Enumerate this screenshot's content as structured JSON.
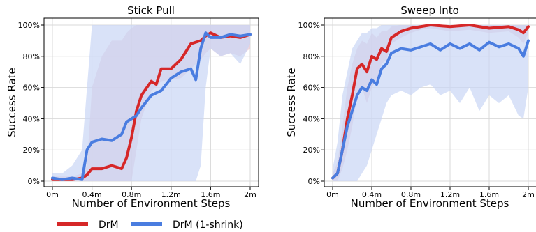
{
  "colors": {
    "drm": "#d62728",
    "shrink": "#4a7de0",
    "drm_band": "#e8c6d2",
    "shrink_band": "#c9d6f5",
    "grid": "#d9d9d9"
  },
  "legend": {
    "items": [
      {
        "label": "DrM",
        "color": "#d62728"
      },
      {
        "label": "DrM (1-shrink)",
        "color": "#4a7de0"
      }
    ]
  },
  "chart_data": [
    {
      "type": "line",
      "title": "Stick Pull",
      "xlabel": "Number of Environment Steps",
      "ylabel": "Success Rate",
      "xlim": [
        0,
        2.0
      ],
      "ylim": [
        0,
        100
      ],
      "xticks": [
        0,
        0.4,
        0.8,
        1.2,
        1.6,
        2.0
      ],
      "xtick_labels": [
        "0m",
        "0.4m",
        "0.8m",
        "1.2m",
        "1.6m",
        "2m"
      ],
      "yticks": [
        0,
        20,
        40,
        60,
        80,
        100
      ],
      "ytick_labels": [
        "0%",
        "20%",
        "40%",
        "60%",
        "80%",
        "100%"
      ],
      "grid": true,
      "series": [
        {
          "name": "DrM",
          "x": [
            0,
            0.1,
            0.2,
            0.3,
            0.35,
            0.4,
            0.5,
            0.6,
            0.7,
            0.75,
            0.8,
            0.85,
            0.9,
            1.0,
            1.05,
            1.1,
            1.2,
            1.3,
            1.4,
            1.5,
            1.55,
            1.6,
            1.7,
            1.8,
            1.9,
            2.0
          ],
          "values": [
            1,
            1,
            1,
            2,
            4,
            8,
            8,
            10,
            8,
            15,
            28,
            45,
            55,
            64,
            62,
            72,
            72,
            78,
            88,
            90,
            93,
            95,
            92,
            93,
            92,
            94
          ],
          "lower": [
            0,
            0,
            0,
            0,
            0,
            0,
            0,
            0,
            0,
            0,
            0,
            20,
            40,
            58,
            60,
            64,
            65,
            66,
            72,
            78,
            82,
            85,
            80,
            82,
            80,
            85
          ],
          "upper": [
            3,
            3,
            3,
            5,
            10,
            60,
            80,
            90,
            90,
            95,
            98,
            100,
            100,
            100,
            100,
            100,
            100,
            100,
            100,
            100,
            100,
            100,
            100,
            100,
            100,
            100
          ]
        },
        {
          "name": "DrM (1-shrink)",
          "x": [
            0,
            0.1,
            0.2,
            0.3,
            0.35,
            0.4,
            0.5,
            0.6,
            0.7,
            0.75,
            0.8,
            0.85,
            0.9,
            1.0,
            1.1,
            1.2,
            1.3,
            1.4,
            1.45,
            1.5,
            1.55,
            1.6,
            1.7,
            1.8,
            1.9,
            2.0
          ],
          "values": [
            2,
            1,
            2,
            1,
            20,
            25,
            27,
            26,
            30,
            38,
            40,
            42,
            47,
            55,
            58,
            66,
            70,
            72,
            65,
            85,
            95,
            92,
            92,
            94,
            93,
            94
          ],
          "lower": [
            0,
            0,
            0,
            0,
            0,
            0,
            0,
            0,
            0,
            0,
            0,
            0,
            0,
            0,
            0,
            0,
            0,
            0,
            0,
            10,
            60,
            85,
            80,
            82,
            75,
            88
          ],
          "upper": [
            5,
            5,
            10,
            20,
            60,
            100,
            100,
            100,
            100,
            100,
            100,
            100,
            100,
            100,
            100,
            100,
            100,
            100,
            100,
            100,
            100,
            100,
            100,
            100,
            100,
            100
          ]
        }
      ]
    },
    {
      "type": "line",
      "title": "Sweep Into",
      "xlabel": "Number of Environment Steps",
      "ylabel": "Success Rate",
      "xlim": [
        0,
        2.0
      ],
      "ylim": [
        0,
        100
      ],
      "xticks": [
        0,
        0.4,
        0.8,
        1.2,
        1.6,
        2.0
      ],
      "xtick_labels": [
        "0m",
        "0.4m",
        "0.8m",
        "1.2m",
        "1.6m",
        "2m"
      ],
      "yticks": [
        0,
        20,
        40,
        60,
        80,
        100
      ],
      "ytick_labels": [
        "0%",
        "20%",
        "40%",
        "60%",
        "80%",
        "100%"
      ],
      "grid": true,
      "series": [
        {
          "name": "DrM",
          "x": [
            0,
            0.05,
            0.1,
            0.15,
            0.2,
            0.25,
            0.3,
            0.35,
            0.4,
            0.45,
            0.5,
            0.55,
            0.6,
            0.7,
            0.8,
            0.9,
            1.0,
            1.2,
            1.4,
            1.6,
            1.8,
            1.9,
            1.95,
            2.0
          ],
          "values": [
            2,
            5,
            20,
            40,
            55,
            72,
            75,
            70,
            80,
            78,
            85,
            83,
            92,
            96,
            98,
            99,
            100,
            99,
            100,
            98,
            99,
            97,
            95,
            99
          ],
          "lower": [
            0,
            0,
            8,
            20,
            35,
            55,
            60,
            50,
            60,
            65,
            75,
            78,
            88,
            92,
            95,
            97,
            98,
            96,
            97,
            95,
            96,
            92,
            88,
            95
          ],
          "upper": [
            5,
            12,
            35,
            60,
            75,
            85,
            90,
            88,
            95,
            92,
            96,
            96,
            99,
            100,
            100,
            100,
            100,
            100,
            100,
            100,
            100,
            100,
            100,
            100
          ]
        },
        {
          "name": "DrM (1-shrink)",
          "x": [
            0,
            0.05,
            0.1,
            0.15,
            0.2,
            0.25,
            0.3,
            0.35,
            0.4,
            0.45,
            0.5,
            0.55,
            0.6,
            0.7,
            0.8,
            0.9,
            1.0,
            1.1,
            1.2,
            1.3,
            1.4,
            1.5,
            1.6,
            1.7,
            1.8,
            1.9,
            1.95,
            2.0
          ],
          "values": [
            2,
            5,
            20,
            35,
            45,
            55,
            60,
            58,
            65,
            62,
            72,
            75,
            82,
            85,
            84,
            86,
            88,
            84,
            88,
            85,
            88,
            84,
            89,
            86,
            88,
            85,
            80,
            90
          ],
          "lower": [
            0,
            0,
            0,
            0,
            0,
            0,
            5,
            10,
            20,
            30,
            40,
            50,
            55,
            58,
            55,
            60,
            62,
            55,
            58,
            50,
            60,
            45,
            55,
            50,
            55,
            42,
            40,
            60
          ],
          "upper": [
            8,
            25,
            55,
            70,
            85,
            90,
            95,
            95,
            98,
            98,
            100,
            100,
            100,
            100,
            100,
            100,
            100,
            100,
            100,
            100,
            100,
            100,
            100,
            100,
            100,
            100,
            100,
            100
          ]
        }
      ]
    }
  ]
}
